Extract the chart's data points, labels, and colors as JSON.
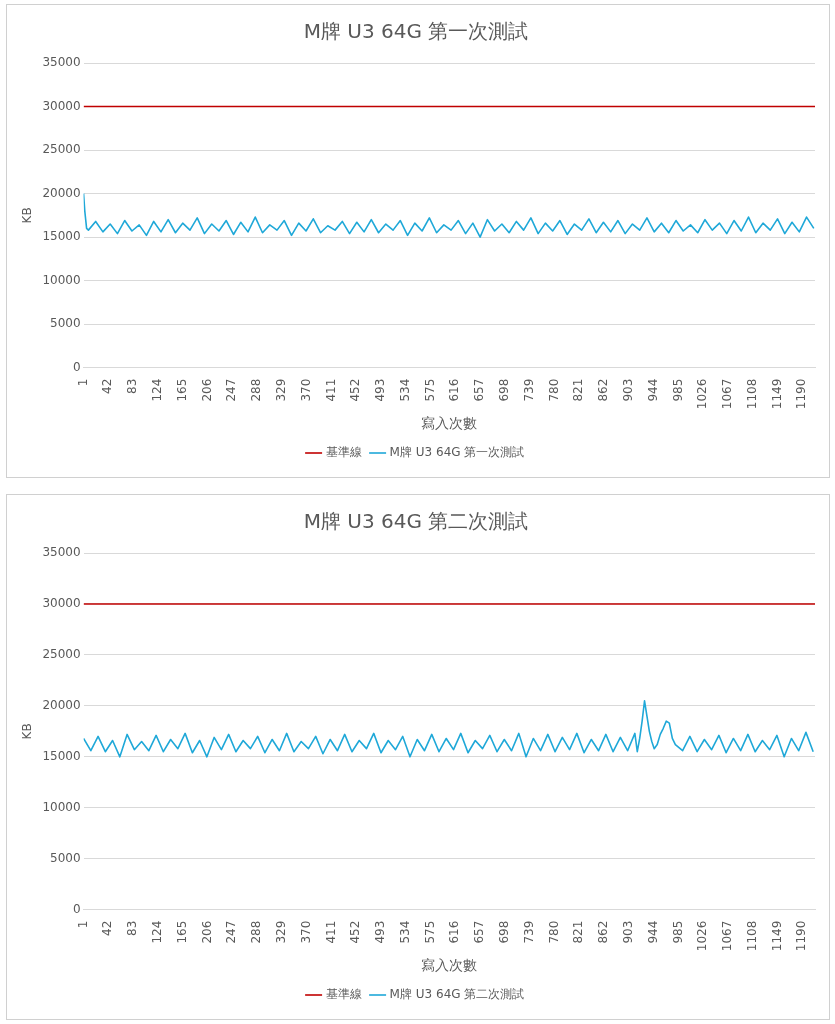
{
  "chart_data": [
    {
      "type": "line",
      "title": "M牌 U3 64G 第一次測試",
      "xlabel": "寫入次數",
      "ylabel": "KB",
      "xlim": [
        1,
        1211
      ],
      "xticks": [
        1,
        42,
        83,
        124,
        165,
        206,
        247,
        288,
        329,
        370,
        411,
        452,
        493,
        534,
        575,
        616,
        657,
        698,
        739,
        780,
        821,
        862,
        903,
        944,
        985,
        1026,
        1067,
        1108,
        1149,
        1190
      ],
      "ylim": [
        0,
        35000
      ],
      "yticks": [
        0,
        5000,
        10000,
        15000,
        20000,
        25000,
        30000,
        35000
      ],
      "grid": "y",
      "legend": "bottom",
      "marker": "none",
      "series": [
        {
          "name": "基準線",
          "color": "#c00000",
          "x": [
            1,
            1211
          ],
          "values": [
            30000,
            30000
          ]
        },
        {
          "name": "M牌 U3 64G 第一次測試",
          "color": "#1fa8d8",
          "x": [
            1,
            3,
            6,
            9,
            21,
            33,
            45,
            57,
            69,
            81,
            93,
            105,
            117,
            129,
            141,
            153,
            165,
            177,
            189,
            201,
            213,
            225,
            237,
            249,
            261,
            273,
            285,
            297,
            309,
            321,
            333,
            345,
            357,
            369,
            381,
            393,
            405,
            417,
            429,
            441,
            453,
            465,
            477,
            489,
            501,
            513,
            525,
            537,
            549,
            561,
            573,
            585,
            597,
            609,
            621,
            633,
            645,
            657,
            669,
            681,
            693,
            705,
            717,
            729,
            741,
            753,
            765,
            777,
            789,
            801,
            813,
            825,
            837,
            849,
            861,
            873,
            885,
            897,
            909,
            921,
            933,
            945,
            957,
            969,
            981,
            993,
            1005,
            1017,
            1029,
            1041,
            1053,
            1065,
            1077,
            1089,
            1101,
            1113,
            1125,
            1137,
            1149,
            1161,
            1173,
            1185,
            1197,
            1209
          ],
          "values": [
            20000,
            18000,
            16000,
            15800,
            16800,
            15600,
            16500,
            15400,
            16900,
            15700,
            16400,
            15200,
            16800,
            15600,
            17000,
            15500,
            16600,
            15800,
            17200,
            15400,
            16500,
            15700,
            16900,
            15300,
            16700,
            15600,
            17300,
            15500,
            16400,
            15800,
            16900,
            15200,
            16600,
            15700,
            17100,
            15500,
            16300,
            15800,
            16800,
            15400,
            16700,
            15600,
            17000,
            15500,
            16500,
            15800,
            16900,
            15200,
            16600,
            15700,
            17200,
            15500,
            16400,
            15800,
            16900,
            15400,
            16600,
            15000,
            17000,
            15700,
            16500,
            15500,
            16800,
            15800,
            17200,
            15400,
            16600,
            15700,
            16900,
            15300,
            16500,
            15800,
            17100,
            15500,
            16700,
            15600,
            16900,
            15400,
            16500,
            15800,
            17200,
            15600,
            16600,
            15500,
            16900,
            15700,
            16400,
            15500,
            17000,
            15800,
            16600,
            15400,
            16900,
            15700,
            17300,
            15500,
            16600,
            15800,
            17100,
            15400,
            16700,
            15600,
            17300,
            16000
          ]
        }
      ]
    },
    {
      "type": "line",
      "title": "M牌 U3 64G 第二次測試",
      "xlabel": "寫入次數",
      "ylabel": "KB",
      "xlim": [
        1,
        1211
      ],
      "xticks": [
        1,
        42,
        83,
        124,
        165,
        206,
        247,
        288,
        329,
        370,
        411,
        452,
        493,
        534,
        575,
        616,
        657,
        698,
        739,
        780,
        821,
        862,
        903,
        944,
        985,
        1026,
        1067,
        1108,
        1149,
        1190
      ],
      "ylim": [
        0,
        35000
      ],
      "yticks": [
        0,
        5000,
        10000,
        15000,
        20000,
        25000,
        30000,
        35000
      ],
      "grid": "y",
      "legend": "bottom",
      "marker": "none",
      "series": [
        {
          "name": "基準線",
          "color": "#c00000",
          "x": [
            1,
            1211
          ],
          "values": [
            30000,
            30000
          ]
        },
        {
          "name": "M牌 U3 64G 第二次測試",
          "color": "#1fa8d8",
          "x": [
            1,
            13,
            25,
            37,
            49,
            61,
            73,
            85,
            97,
            109,
            121,
            133,
            145,
            157,
            169,
            181,
            193,
            205,
            217,
            229,
            241,
            253,
            265,
            277,
            289,
            301,
            313,
            325,
            337,
            349,
            361,
            373,
            385,
            397,
            409,
            421,
            433,
            445,
            457,
            469,
            481,
            493,
            505,
            517,
            529,
            541,
            553,
            565,
            577,
            589,
            601,
            613,
            625,
            637,
            649,
            661,
            673,
            685,
            697,
            709,
            721,
            733,
            745,
            757,
            769,
            781,
            793,
            805,
            817,
            829,
            841,
            853,
            865,
            877,
            889,
            901,
            913,
            917,
            921,
            925,
            929,
            933,
            937,
            941,
            945,
            950,
            955,
            960,
            965,
            970,
            975,
            980,
            992,
            1004,
            1016,
            1028,
            1040,
            1052,
            1064,
            1076,
            1088,
            1100,
            1112,
            1124,
            1136,
            1148,
            1160,
            1172,
            1184,
            1196,
            1208
          ],
          "values": [
            16800,
            15600,
            17000,
            15500,
            16600,
            15000,
            17200,
            15700,
            16500,
            15600,
            17100,
            15500,
            16700,
            15800,
            17300,
            15400,
            16600,
            15000,
            16900,
            15700,
            17200,
            15500,
            16600,
            15800,
            17000,
            15400,
            16700,
            15600,
            17300,
            15500,
            16500,
            15800,
            17000,
            15300,
            16700,
            15600,
            17200,
            15500,
            16600,
            15800,
            17300,
            15400,
            16600,
            15700,
            17000,
            15000,
            16700,
            15600,
            17200,
            15500,
            16800,
            15700,
            17300,
            15400,
            16600,
            15800,
            17100,
            15500,
            16700,
            15600,
            17300,
            15000,
            16800,
            15600,
            17200,
            15500,
            16900,
            15700,
            17300,
            15400,
            16700,
            15600,
            17200,
            15500,
            16900,
            15600,
            17300,
            15500,
            16800,
            18500,
            20500,
            19000,
            17500,
            16500,
            15800,
            16200,
            17200,
            17800,
            18500,
            18300,
            16800,
            16200,
            15600,
            17000,
            15500,
            16700,
            15700,
            17100,
            15400,
            16800,
            15600,
            17200,
            15500,
            16600,
            15700,
            17100,
            15000,
            16800,
            15600,
            17400,
            15500
          ]
        }
      ]
    }
  ]
}
